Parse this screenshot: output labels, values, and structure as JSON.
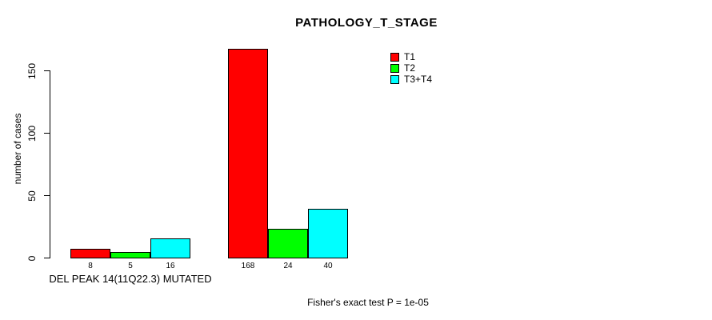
{
  "chart_data": {
    "type": "bar",
    "title": "PATHOLOGY_T_STAGE",
    "xlabel": "",
    "ylabel": "number of cases",
    "ylim": [
      0,
      150
    ],
    "yticks": [
      0,
      50,
      100,
      150
    ],
    "grid": false,
    "legend_position": "top-right",
    "categories": [
      "DEL PEAK 14(11Q22.3) MUTATED",
      ""
    ],
    "series": [
      {
        "name": "T1",
        "color": "#ff0000",
        "values": [
          8,
          168
        ]
      },
      {
        "name": "T2",
        "color": "#00ff00",
        "values": [
          5,
          24
        ]
      },
      {
        "name": "T3+T4",
        "color": "#00ffff",
        "values": [
          16,
          40
        ]
      }
    ],
    "bar_value_labels": [
      [
        "8",
        "5",
        "16"
      ],
      [
        "168",
        "24",
        "40"
      ]
    ],
    "annotation": "Fisher's exact test P = 1e-05"
  }
}
